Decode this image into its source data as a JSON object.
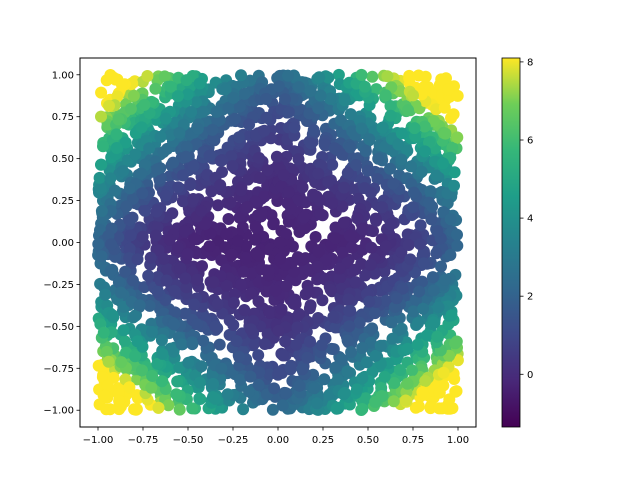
{
  "chart_data": {
    "type": "scatter",
    "title": "",
    "xlabel": "",
    "ylabel": "",
    "xlim": [
      -1.1,
      1.1
    ],
    "ylim": [
      -1.1,
      1.1
    ],
    "xticks": [
      -1.0,
      -0.75,
      -0.5,
      -0.25,
      0.0,
      0.25,
      0.5,
      0.75,
      1.0
    ],
    "xtick_labels": [
      "−1.00",
      "−0.75",
      "−0.50",
      "−0.25",
      "0.00",
      "0.25",
      "0.50",
      "0.75",
      "1.00"
    ],
    "yticks": [
      -1.0,
      -0.75,
      -0.5,
      -0.25,
      0.0,
      0.25,
      0.5,
      0.75,
      1.0
    ],
    "ytick_labels": [
      "−1.00",
      "−0.75",
      "−0.50",
      "−0.25",
      "0.00",
      "0.25",
      "0.50",
      "0.75",
      "1.00"
    ],
    "grid": false,
    "colormap": "viridis",
    "colorbar": {
      "range": [
        -1.35,
        8.1
      ],
      "ticks": [
        0,
        2,
        4,
        6,
        8
      ],
      "tick_labels": [
        "0",
        "2",
        "4",
        "6",
        "8"
      ]
    },
    "color_function": "sign(x)*sign(y)*(|x|^1.5+|y|^1.5)... approx: 4*(x^2+y^2)+2*sin(4x+2y)",
    "points": {
      "count": 2600,
      "x_range": [
        -1.0,
        1.0
      ],
      "y_range": [
        -1.0,
        1.0
      ],
      "value_range": [
        -1.35,
        8.1
      ]
    }
  }
}
